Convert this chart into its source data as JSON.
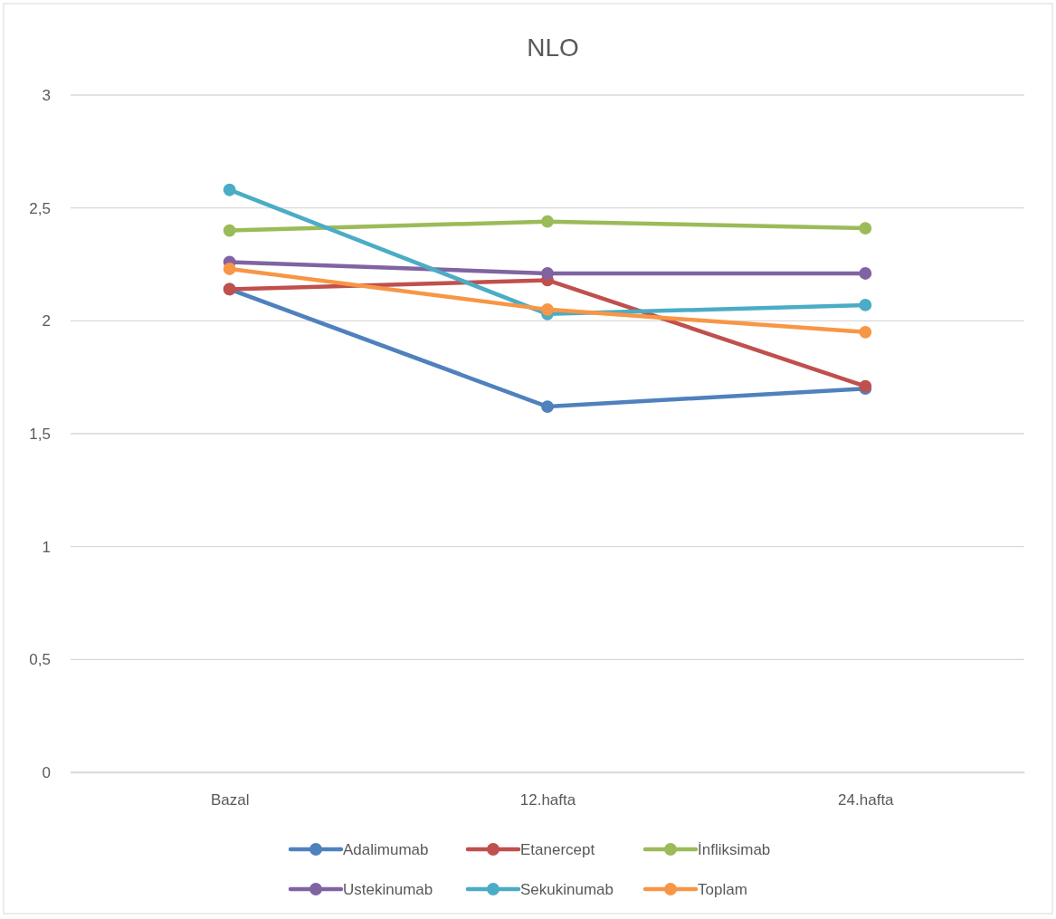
{
  "chart_data": {
    "type": "line",
    "title": "NLO",
    "categories": [
      "Bazal",
      "12.hafta",
      "24.hafta"
    ],
    "series": [
      {
        "name": "Adalimumab",
        "color": "#4f81bd",
        "values": [
          2.14,
          1.62,
          1.7
        ]
      },
      {
        "name": "Etanercept",
        "color": "#c0504d",
        "values": [
          2.14,
          2.18,
          1.71
        ]
      },
      {
        "name": "İnfliksimab",
        "color": "#9bbb59",
        "values": [
          2.4,
          2.44,
          2.41
        ]
      },
      {
        "name": "Ustekinumab",
        "color": "#8064a2",
        "values": [
          2.26,
          2.21,
          2.21
        ]
      },
      {
        "name": "Sekukinumab",
        "color": "#4bacc6",
        "values": [
          2.58,
          2.03,
          2.07
        ]
      },
      {
        "name": "Toplam",
        "color": "#f79646",
        "values": [
          2.23,
          2.05,
          1.95
        ]
      }
    ],
    "ylim": [
      0,
      3
    ],
    "yticks": [
      0,
      {
        "value": 0.5,
        "label": "0,5"
      },
      1,
      {
        "value": 1.5,
        "label": "1,5"
      },
      2,
      {
        "value": 2.5,
        "label": "2,5"
      },
      3
    ],
    "grid": "y",
    "legend": "bottom",
    "marker": "circle",
    "line_style": "solid"
  }
}
